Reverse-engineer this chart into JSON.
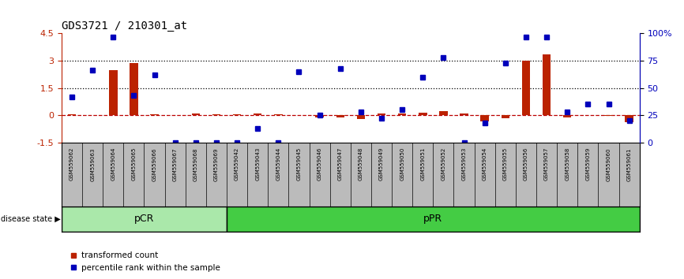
{
  "title": "GDS3721 / 210301_at",
  "samples": [
    "GSM559062",
    "GSM559063",
    "GSM559064",
    "GSM559065",
    "GSM559066",
    "GSM559067",
    "GSM559068",
    "GSM559069",
    "GSM559042",
    "GSM559043",
    "GSM559044",
    "GSM559045",
    "GSM559046",
    "GSM559047",
    "GSM559048",
    "GSM559049",
    "GSM559050",
    "GSM559051",
    "GSM559052",
    "GSM559053",
    "GSM559054",
    "GSM559055",
    "GSM559056",
    "GSM559057",
    "GSM559058",
    "GSM559059",
    "GSM559060",
    "GSM559061"
  ],
  "transformed_count": [
    0.05,
    0.0,
    2.5,
    2.85,
    0.05,
    0.0,
    0.1,
    0.05,
    0.05,
    0.1,
    0.05,
    0.0,
    -0.12,
    -0.15,
    -0.22,
    0.1,
    0.1,
    0.15,
    0.2,
    0.1,
    -0.35,
    -0.18,
    3.0,
    3.35,
    -0.12,
    0.0,
    -0.05,
    -0.4
  ],
  "percentile_rank": [
    42,
    66,
    97,
    43,
    62,
    0,
    0,
    0,
    0,
    13,
    0,
    65,
    25,
    68,
    28,
    22,
    30,
    60,
    78,
    0,
    18,
    73,
    97,
    97,
    28,
    35,
    35,
    20
  ],
  "pCR_count": 8,
  "pPR_count": 20,
  "ylim_left": [
    -1.5,
    4.5
  ],
  "ylim_right": [
    0,
    100
  ],
  "yticks_left": [
    -1.5,
    0.0,
    1.5,
    3.0,
    4.5
  ],
  "ytick_labels_left": [
    "-1.5",
    "0",
    "1.5",
    "3",
    "4.5"
  ],
  "yticks_right": [
    0,
    25,
    50,
    75,
    100
  ],
  "ytick_labels_right": [
    "0",
    "25",
    "50",
    "75",
    "100%"
  ],
  "hlines": [
    0.0,
    1.5,
    3.0
  ],
  "hline_styles": [
    "dashed",
    "dotted",
    "dotted"
  ],
  "hline_colors": [
    "#bb0000",
    "#000000",
    "#000000"
  ],
  "bar_color": "#bb2200",
  "dot_color": "#0000bb",
  "pcr_color": "#aae8aa",
  "ppr_color": "#44cc44",
  "bg_color": "#bbbbbb",
  "title_color": "#000000",
  "title_fontsize": 10,
  "bar_width": 0.4,
  "dot_markersize": 5
}
